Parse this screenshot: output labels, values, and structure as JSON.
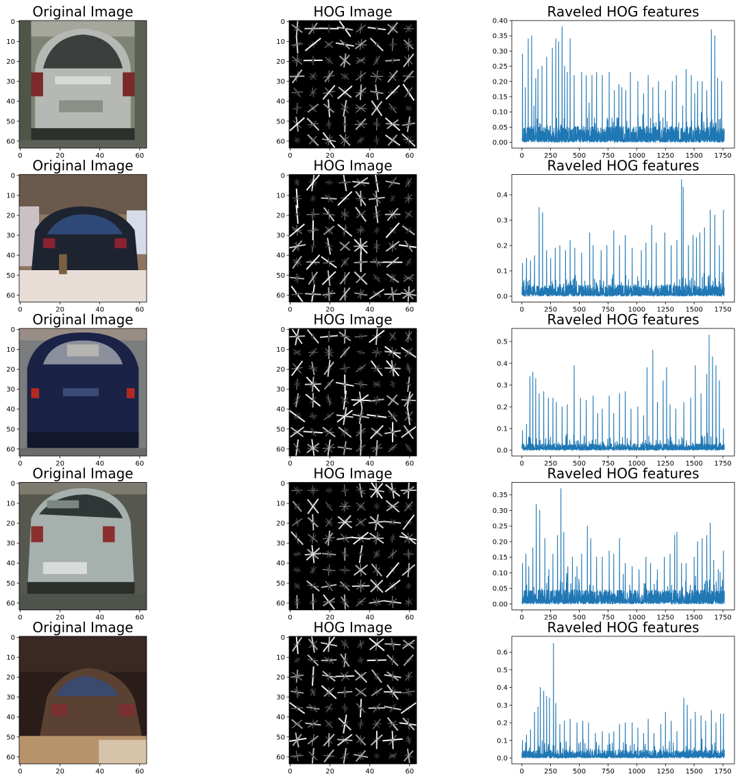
{
  "figure": {
    "rows": [
      {
        "titles": {
          "image": "Original Image",
          "hog": "HOG Image",
          "features": "Raveled HOG features"
        },
        "image_kind": "silver_hatch"
      },
      {
        "titles": {
          "image": "Original Image",
          "hog": "HOG Image",
          "features": "Raveled HOG features"
        },
        "image_kind": "blurry_dark_car"
      },
      {
        "titles": {
          "image": "Original Image",
          "hog": "HOG Image",
          "features": "Raveled HOG features"
        },
        "image_kind": "navy_hatch"
      },
      {
        "titles": {
          "image": "Original Image",
          "hog": "HOG Image",
          "features": "Raveled HOG features"
        },
        "image_kind": "silver_hatch_tilted"
      },
      {
        "titles": {
          "image": "Original Image",
          "hog": "HOG Image",
          "features": "Raveled HOG features"
        },
        "image_kind": "dark_brown_blurry"
      }
    ]
  },
  "chart_data": [
    {
      "panel": "image",
      "row": 1,
      "type": "image",
      "title": "Original Image",
      "xticks": [
        0,
        20,
        40,
        60
      ],
      "yticks": [
        0,
        10,
        20,
        30,
        40,
        50,
        60
      ],
      "extent": [
        0,
        63
      ]
    },
    {
      "panel": "hog",
      "row": 1,
      "type": "image",
      "title": "HOG Image",
      "xticks": [
        0,
        20,
        40,
        60
      ],
      "yticks": [
        0,
        10,
        20,
        30,
        40,
        50,
        60
      ],
      "extent": [
        0,
        63
      ]
    },
    {
      "panel": "features",
      "row": 1,
      "type": "line",
      "title": "Raveled HOG features",
      "x_range": [
        0,
        1763
      ],
      "xlim": [
        -88,
        1851
      ],
      "ylim": [
        -0.019,
        0.4
      ],
      "xticks": [
        0,
        250,
        500,
        750,
        1000,
        1250,
        1500,
        1750
      ],
      "yticks": [
        0.0,
        0.05,
        0.1,
        0.15,
        0.2,
        0.25,
        0.3,
        0.35,
        0.4
      ],
      "ytick_labels": [
        "0.00",
        "0.05",
        "0.10",
        "0.15",
        "0.20",
        "0.25",
        "0.30",
        "0.35",
        "0.40"
      ],
      "peaks": [
        [
          5,
          0.29
        ],
        [
          30,
          0.18
        ],
        [
          55,
          0.34
        ],
        [
          85,
          0.35
        ],
        [
          105,
          0.12
        ],
        [
          120,
          0.21
        ],
        [
          140,
          0.24
        ],
        [
          175,
          0.25
        ],
        [
          215,
          0.28
        ],
        [
          265,
          0.31
        ],
        [
          295,
          0.34
        ],
        [
          320,
          0.33
        ],
        [
          350,
          0.38
        ],
        [
          372,
          0.25
        ],
        [
          395,
          0.23
        ],
        [
          420,
          0.34
        ],
        [
          455,
          0.22
        ],
        [
          520,
          0.23
        ],
        [
          560,
          0.22
        ],
        [
          585,
          0.13
        ],
        [
          610,
          0.22
        ],
        [
          650,
          0.23
        ],
        [
          700,
          0.22
        ],
        [
          760,
          0.23
        ],
        [
          805,
          0.17
        ],
        [
          845,
          0.19
        ],
        [
          870,
          0.18
        ],
        [
          905,
          0.17
        ],
        [
          945,
          0.23
        ],
        [
          1010,
          0.2
        ],
        [
          1060,
          0.16
        ],
        [
          1100,
          0.22
        ],
        [
          1140,
          0.18
        ],
        [
          1190,
          0.2
        ],
        [
          1250,
          0.17
        ],
        [
          1310,
          0.2
        ],
        [
          1345,
          0.22
        ],
        [
          1400,
          0.12
        ],
        [
          1430,
          0.24
        ],
        [
          1475,
          0.22
        ],
        [
          1505,
          0.16
        ],
        [
          1530,
          0.2
        ],
        [
          1570,
          0.2
        ],
        [
          1610,
          0.17
        ],
        [
          1650,
          0.37
        ],
        [
          1680,
          0.35
        ],
        [
          1705,
          0.21
        ],
        [
          1740,
          0.2
        ]
      ],
      "baseline": 0.035,
      "noise": 0.06
    },
    {
      "panel": "image",
      "row": 2,
      "type": "image",
      "title": "Original Image",
      "xticks": [
        0,
        20,
        40,
        60
      ],
      "yticks": [
        0,
        10,
        20,
        30,
        40,
        50,
        60
      ],
      "extent": [
        0,
        63
      ]
    },
    {
      "panel": "hog",
      "row": 2,
      "type": "image",
      "title": "HOG Image",
      "xticks": [
        0,
        20,
        40,
        60
      ],
      "yticks": [
        0,
        10,
        20,
        30,
        40,
        50,
        60
      ],
      "extent": [
        0,
        63
      ]
    },
    {
      "panel": "features",
      "row": 2,
      "type": "line",
      "title": "Raveled HOG features",
      "x_range": [
        0,
        1763
      ],
      "xlim": [
        -88,
        1851
      ],
      "ylim": [
        -0.023,
        0.48
      ],
      "xticks": [
        0,
        250,
        500,
        750,
        1000,
        1250,
        1500,
        1750
      ],
      "yticks": [
        0.0,
        0.1,
        0.2,
        0.3,
        0.4
      ],
      "ytick_labels": [
        "0.0",
        "0.1",
        "0.2",
        "0.3",
        "0.4"
      ],
      "peaks": [
        [
          5,
          0.13
        ],
        [
          40,
          0.15
        ],
        [
          75,
          0.14
        ],
        [
          110,
          0.16
        ],
        [
          150,
          0.35
        ],
        [
          180,
          0.33
        ],
        [
          215,
          0.18
        ],
        [
          250,
          0.15
        ],
        [
          290,
          0.19
        ],
        [
          330,
          0.2
        ],
        [
          380,
          0.18
        ],
        [
          420,
          0.22
        ],
        [
          460,
          0.19
        ],
        [
          520,
          0.17
        ],
        [
          590,
          0.25
        ],
        [
          620,
          0.2
        ],
        [
          690,
          0.18
        ],
        [
          740,
          0.2
        ],
        [
          800,
          0.26
        ],
        [
          850,
          0.2
        ],
        [
          900,
          0.24
        ],
        [
          960,
          0.19
        ],
        [
          1040,
          0.18
        ],
        [
          1080,
          0.21
        ],
        [
          1130,
          0.28
        ],
        [
          1170,
          0.21
        ],
        [
          1245,
          0.25
        ],
        [
          1300,
          0.2
        ],
        [
          1350,
          0.22
        ],
        [
          1390,
          0.46
        ],
        [
          1405,
          0.43
        ],
        [
          1450,
          0.2
        ],
        [
          1490,
          0.24
        ],
        [
          1520,
          0.23
        ],
        [
          1550,
          0.25
        ],
        [
          1590,
          0.27
        ],
        [
          1640,
          0.34
        ],
        [
          1680,
          0.32
        ],
        [
          1720,
          0.2
        ],
        [
          1755,
          0.34
        ]
      ],
      "baseline": 0.03,
      "noise": 0.05
    },
    {
      "panel": "image",
      "row": 3,
      "type": "image",
      "title": "Original Image",
      "xticks": [
        0,
        20,
        40,
        60
      ],
      "yticks": [
        0,
        10,
        20,
        30,
        40,
        50,
        60
      ],
      "extent": [
        0,
        63
      ]
    },
    {
      "panel": "hog",
      "row": 3,
      "type": "image",
      "title": "HOG Image",
      "xticks": [
        0,
        20,
        40,
        60
      ],
      "yticks": [
        0,
        10,
        20,
        30,
        40,
        50,
        60
      ],
      "extent": [
        0,
        63
      ]
    },
    {
      "panel": "features",
      "row": 3,
      "type": "line",
      "title": "Raveled HOG features",
      "x_range": [
        0,
        1763
      ],
      "xlim": [
        -88,
        1851
      ],
      "ylim": [
        -0.026,
        0.56
      ],
      "xticks": [
        0,
        250,
        500,
        750,
        1000,
        1250,
        1500,
        1750
      ],
      "yticks": [
        0.0,
        0.1,
        0.2,
        0.3,
        0.4,
        0.5
      ],
      "ytick_labels": [
        "0.0",
        "0.1",
        "0.2",
        "0.3",
        "0.4",
        "0.5"
      ],
      "peaks": [
        [
          5,
          0.09
        ],
        [
          40,
          0.12
        ],
        [
          70,
          0.34
        ],
        [
          95,
          0.36
        ],
        [
          120,
          0.33
        ],
        [
          150,
          0.26
        ],
        [
          190,
          0.27
        ],
        [
          230,
          0.24
        ],
        [
          270,
          0.24
        ],
        [
          300,
          0.22
        ],
        [
          350,
          0.2
        ],
        [
          395,
          0.21
        ],
        [
          455,
          0.39
        ],
        [
          510,
          0.24
        ],
        [
          560,
          0.23
        ],
        [
          620,
          0.25
        ],
        [
          660,
          0.17
        ],
        [
          700,
          0.19
        ],
        [
          760,
          0.25
        ],
        [
          800,
          0.17
        ],
        [
          850,
          0.26
        ],
        [
          900,
          0.27
        ],
        [
          950,
          0.19
        ],
        [
          1010,
          0.2
        ],
        [
          1060,
          0.16
        ],
        [
          1090,
          0.38
        ],
        [
          1140,
          0.46
        ],
        [
          1180,
          0.22
        ],
        [
          1230,
          0.32
        ],
        [
          1260,
          0.38
        ],
        [
          1290,
          0.21
        ],
        [
          1340,
          0.19
        ],
        [
          1410,
          0.22
        ],
        [
          1470,
          0.24
        ],
        [
          1510,
          0.39
        ],
        [
          1560,
          0.26
        ],
        [
          1610,
          0.35
        ],
        [
          1630,
          0.53
        ],
        [
          1660,
          0.43
        ],
        [
          1690,
          0.39
        ],
        [
          1720,
          0.32
        ],
        [
          1755,
          0.1
        ]
      ],
      "baseline": 0.02,
      "noise": 0.05
    },
    {
      "panel": "image",
      "row": 4,
      "type": "image",
      "title": "Original Image",
      "xticks": [
        0,
        20,
        40,
        60
      ],
      "yticks": [
        0,
        10,
        20,
        30,
        40,
        50,
        60
      ],
      "extent": [
        0,
        63
      ]
    },
    {
      "panel": "hog",
      "row": 4,
      "type": "image",
      "title": "HOG Image",
      "xticks": [
        0,
        20,
        40,
        60
      ],
      "yticks": [
        0,
        10,
        20,
        30,
        40,
        50,
        60
      ],
      "extent": [
        0,
        63
      ]
    },
    {
      "panel": "features",
      "row": 4,
      "type": "line",
      "title": "Raveled HOG features",
      "x_range": [
        0,
        1763
      ],
      "xlim": [
        -88,
        1851
      ],
      "ylim": [
        -0.019,
        0.39
      ],
      "xticks": [
        0,
        250,
        500,
        750,
        1000,
        1250,
        1500,
        1750
      ],
      "yticks": [
        0.0,
        0.05,
        0.1,
        0.15,
        0.2,
        0.25,
        0.3,
        0.35
      ],
      "ytick_labels": [
        "0.00",
        "0.05",
        "0.10",
        "0.15",
        "0.20",
        "0.25",
        "0.30",
        "0.35"
      ],
      "peaks": [
        [
          5,
          0.13
        ],
        [
          35,
          0.16
        ],
        [
          60,
          0.12
        ],
        [
          95,
          0.18
        ],
        [
          125,
          0.32
        ],
        [
          155,
          0.3
        ],
        [
          200,
          0.21
        ],
        [
          235,
          0.11
        ],
        [
          270,
          0.16
        ],
        [
          310,
          0.22
        ],
        [
          340,
          0.37
        ],
        [
          365,
          0.23
        ],
        [
          400,
          0.12
        ],
        [
          440,
          0.15
        ],
        [
          480,
          0.12
        ],
        [
          520,
          0.16
        ],
        [
          570,
          0.25
        ],
        [
          600,
          0.21
        ],
        [
          650,
          0.15
        ],
        [
          700,
          0.15
        ],
        [
          760,
          0.17
        ],
        [
          800,
          0.16
        ],
        [
          850,
          0.21
        ],
        [
          900,
          0.13
        ],
        [
          960,
          0.12
        ],
        [
          1020,
          0.11
        ],
        [
          1080,
          0.15
        ],
        [
          1120,
          0.13
        ],
        [
          1180,
          0.11
        ],
        [
          1240,
          0.15
        ],
        [
          1290,
          0.16
        ],
        [
          1330,
          0.22
        ],
        [
          1350,
          0.23
        ],
        [
          1390,
          0.13
        ],
        [
          1430,
          0.13
        ],
        [
          1500,
          0.15
        ],
        [
          1530,
          0.2
        ],
        [
          1570,
          0.21
        ],
        [
          1610,
          0.22
        ],
        [
          1640,
          0.26
        ],
        [
          1670,
          0.14
        ],
        [
          1710,
          0.11
        ],
        [
          1755,
          0.17
        ]
      ],
      "baseline": 0.03,
      "noise": 0.06
    },
    {
      "panel": "image",
      "row": 5,
      "type": "image",
      "title": "Original Image",
      "xticks": [
        0,
        20,
        40,
        60
      ],
      "yticks": [
        0,
        10,
        20,
        30,
        40,
        50,
        60
      ],
      "extent": [
        0,
        63
      ]
    },
    {
      "panel": "hog",
      "row": 5,
      "type": "image",
      "title": "HOG Image",
      "xticks": [
        0,
        20,
        40,
        60
      ],
      "yticks": [
        0,
        10,
        20,
        30,
        40,
        50,
        60
      ],
      "extent": [
        0,
        63
      ]
    },
    {
      "panel": "features",
      "row": 5,
      "type": "line",
      "title": "Raveled HOG features",
      "x_range": [
        0,
        1763
      ],
      "xlim": [
        -88,
        1851
      ],
      "ylim": [
        -0.033,
        0.69
      ],
      "xticks": [
        0,
        250,
        500,
        750,
        1000,
        1250,
        1500,
        1750
      ],
      "yticks": [
        0.0,
        0.1,
        0.2,
        0.3,
        0.4,
        0.5,
        0.6
      ],
      "ytick_labels": [
        "0.0",
        "0.1",
        "0.2",
        "0.3",
        "0.4",
        "0.5",
        "0.6"
      ],
      "peaks": [
        [
          5,
          0.1
        ],
        [
          40,
          0.13
        ],
        [
          75,
          0.16
        ],
        [
          110,
          0.26
        ],
        [
          140,
          0.29
        ],
        [
          160,
          0.4
        ],
        [
          190,
          0.38
        ],
        [
          215,
          0.35
        ],
        [
          240,
          0.34
        ],
        [
          275,
          0.65
        ],
        [
          295,
          0.31
        ],
        [
          330,
          0.19
        ],
        [
          370,
          0.21
        ],
        [
          420,
          0.22
        ],
        [
          480,
          0.2
        ],
        [
          530,
          0.21
        ],
        [
          580,
          0.2
        ],
        [
          640,
          0.14
        ],
        [
          700,
          0.15
        ],
        [
          760,
          0.14
        ],
        [
          800,
          0.15
        ],
        [
          850,
          0.19
        ],
        [
          900,
          0.2
        ],
        [
          960,
          0.2
        ],
        [
          1010,
          0.17
        ],
        [
          1060,
          0.14
        ],
        [
          1100,
          0.22
        ],
        [
          1150,
          0.14
        ],
        [
          1210,
          0.19
        ],
        [
          1250,
          0.26
        ],
        [
          1300,
          0.21
        ],
        [
          1350,
          0.15
        ],
        [
          1410,
          0.34
        ],
        [
          1440,
          0.3
        ],
        [
          1470,
          0.22
        ],
        [
          1510,
          0.26
        ],
        [
          1560,
          0.24
        ],
        [
          1600,
          0.21
        ],
        [
          1650,
          0.27
        ],
        [
          1690,
          0.2
        ],
        [
          1730,
          0.25
        ],
        [
          1755,
          0.25
        ]
      ],
      "baseline": 0.03,
      "noise": 0.07
    }
  ]
}
